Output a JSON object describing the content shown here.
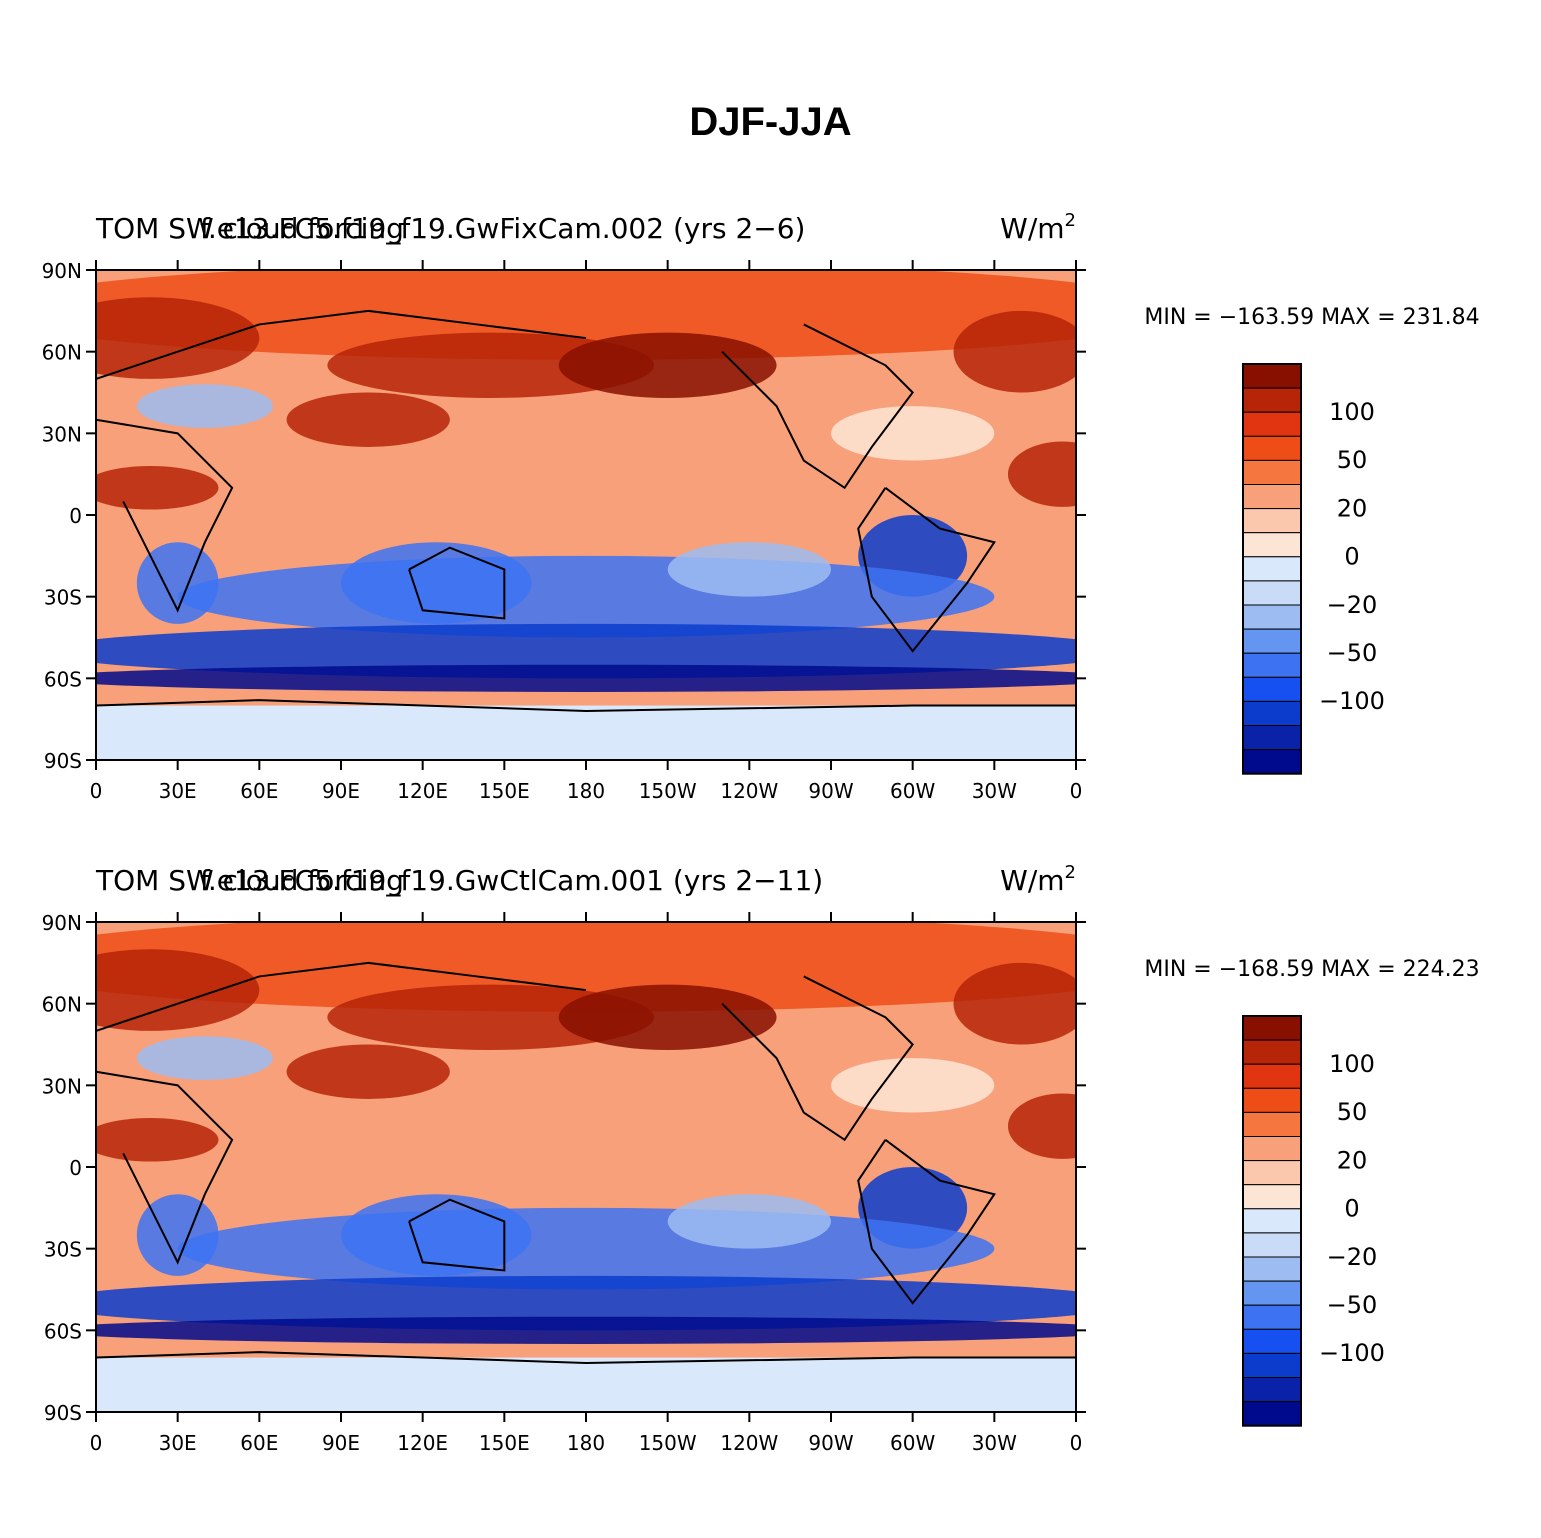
{
  "figure": {
    "title": "DJF-JJA"
  },
  "axes": {
    "lat_labels": [
      "90N",
      "60N",
      "30N",
      "0",
      "30S",
      "60S",
      "90S"
    ],
    "lon_labels": [
      "0",
      "30E",
      "60E",
      "90E",
      "120E",
      "150E",
      "180",
      "150W",
      "120W",
      "90W",
      "60W",
      "30W",
      "0"
    ]
  },
  "colorbar": {
    "levels": [
      -150,
      -120,
      -100,
      -80,
      -50,
      -40,
      -20,
      -10,
      0,
      10,
      20,
      40,
      50,
      80,
      100,
      120,
      150
    ],
    "labels": [
      "100",
      "50",
      "20",
      "0",
      "−20",
      "−50",
      "−100"
    ],
    "colors_low_to_high": [
      "#000a8c",
      "#0a22a8",
      "#0b3ccc",
      "#1750f0",
      "#3d73f2",
      "#6495f0",
      "#9cbcf2",
      "#c9dbf7",
      "#d9e8fa",
      "#fde5d5",
      "#fbc7ad",
      "#f8a07a",
      "#f5773f",
      "#ee4d17",
      "#e03510",
      "#b62508",
      "#871000"
    ]
  },
  "panels": [
    {
      "case_label": "f.e13.FC5.f19_f19.GwFixCam.002 (yrs 2−6)",
      "variable_label": "TOM SW cloud forcing",
      "units_base": "W/m",
      "units_sup": "2",
      "stats": "MIN = −163.59 MAX = 231.84",
      "min": -163.59,
      "max": 231.84
    },
    {
      "case_label": "f.e13.FC5.f19_f19.GwCtlCam.001 (yrs 2−11)",
      "variable_label": "TOM SW cloud forcing",
      "units_base": "W/m",
      "units_sup": "2",
      "stats": "MIN = −168.59 MAX = 224.23",
      "min": -168.59,
      "max": 224.23
    }
  ]
}
